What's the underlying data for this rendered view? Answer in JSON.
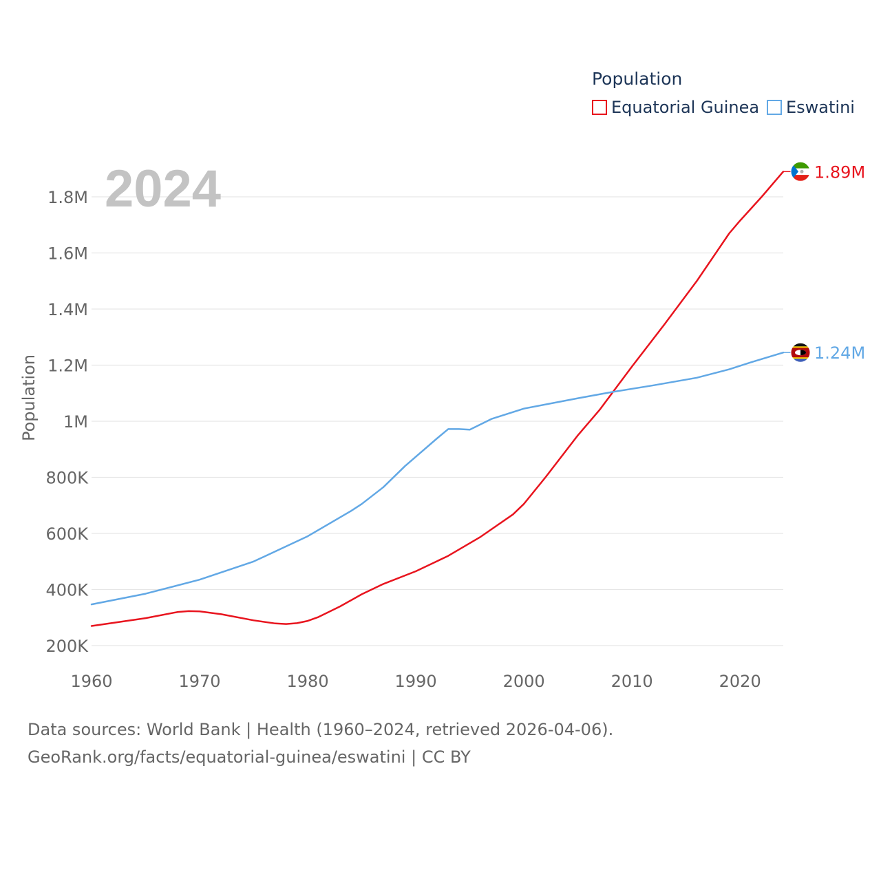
{
  "legend": {
    "title": "Population",
    "items": [
      {
        "label": "Equatorial Guinea",
        "color": "#e8141e"
      },
      {
        "label": "Eswatini",
        "color": "#62a8e5"
      }
    ]
  },
  "year_label": "2024",
  "footer": {
    "line1": "Data sources: World Bank | Health (1960–2024, retrieved 2026-04-06).",
    "line2": "GeoRank.org/facts/equatorial-guinea/eswatini | CC BY"
  },
  "chart_data": {
    "type": "line",
    "title": "Population",
    "xlabel": "",
    "ylabel": "Population",
    "xlim": [
      1960,
      2024
    ],
    "ylim": [
      200000,
      1900000
    ],
    "x_ticks": [
      1960,
      1970,
      1980,
      1990,
      2000,
      2010,
      2020
    ],
    "y_ticks": [
      {
        "value": 200000,
        "label": "200K"
      },
      {
        "value": 400000,
        "label": "400K"
      },
      {
        "value": 600000,
        "label": "600K"
      },
      {
        "value": 800000,
        "label": "800K"
      },
      {
        "value": 1000000,
        "label": "1M"
      },
      {
        "value": 1200000,
        "label": "1.2M"
      },
      {
        "value": 1400000,
        "label": "1.4M"
      },
      {
        "value": 1600000,
        "label": "1.6M"
      },
      {
        "value": 1800000,
        "label": "1.8M"
      }
    ],
    "grid": true,
    "legend_position": "top-right",
    "series": [
      {
        "name": "Equatorial Guinea",
        "color": "#e8141e",
        "end_label": "1.89M",
        "x": [
          1960,
          1965,
          1968,
          1969,
          1970,
          1972,
          1975,
          1977,
          1978,
          1979,
          1980,
          1981,
          1983,
          1985,
          1987,
          1990,
          1993,
          1996,
          1999,
          2000,
          2002,
          2005,
          2007,
          2010,
          2013,
          2016,
          2019,
          2020,
          2022,
          2024
        ],
        "values": [
          270000,
          298000,
          320000,
          323000,
          322000,
          312000,
          290000,
          279000,
          277000,
          280000,
          288000,
          302000,
          340000,
          383000,
          420000,
          465000,
          520000,
          588000,
          668000,
          705000,
          800000,
          950000,
          1040000,
          1195000,
          1345000,
          1500000,
          1670000,
          1715000,
          1800000,
          1890000
        ]
      },
      {
        "name": "Eswatini",
        "color": "#62a8e5",
        "end_label": "1.24M",
        "x": [
          1960,
          1965,
          1970,
          1975,
          1980,
          1984,
          1985,
          1987,
          1989,
          1992,
          1993,
          1994,
          1995,
          1997,
          2000,
          2005,
          2008,
          2012,
          2016,
          2019,
          2021,
          2024
        ],
        "values": [
          347000,
          385000,
          435000,
          500000,
          590000,
          680000,
          705000,
          765000,
          840000,
          940000,
          972000,
          972000,
          970000,
          1008000,
          1045000,
          1082000,
          1103000,
          1128000,
          1155000,
          1185000,
          1210000,
          1245000
        ]
      }
    ]
  }
}
